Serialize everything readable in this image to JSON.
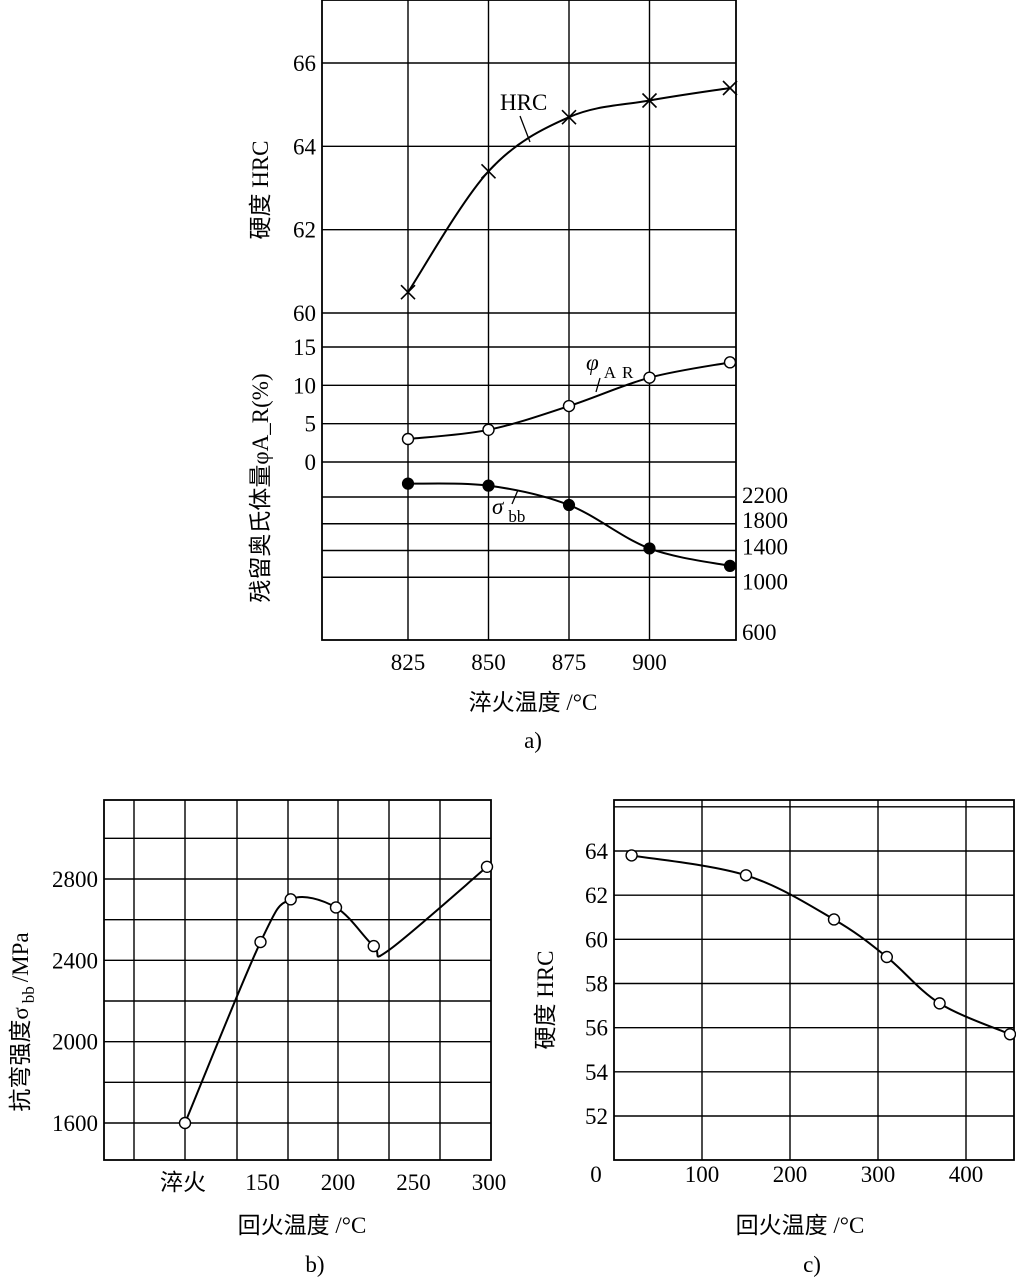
{
  "chart_data": [
    {
      "id": "a",
      "type": "line",
      "caption": "a)",
      "xlabel": "淬火温度 /°C",
      "x": [
        825,
        850,
        875,
        900,
        925
      ],
      "xticks": [
        "825",
        "850",
        "875",
        "900"
      ],
      "panels": {
        "hardness": {
          "ylabel": "硬度 HRC",
          "ylim": [
            60,
            67.5
          ],
          "yticks": [
            "60",
            "62",
            "64",
            "66"
          ],
          "series": [
            {
              "name": "HRC",
              "label": "HRC",
              "marker": "x",
              "values": [
                60.5,
                63.4,
                64.7,
                65.1,
                65.4
              ]
            }
          ]
        },
        "austenite": {
          "ylabel": "残留奥氏体量φA_R(%)",
          "ylim": [
            0,
            15
          ],
          "yticks": [
            "0",
            "5",
            "10",
            "15"
          ],
          "series": [
            {
              "name": "phi_AR",
              "label_main": "φ",
              "label_sub": "A",
              "label_sub2": "R",
              "marker": "open-circle",
              "values": [
                3,
                4.2,
                7.3,
                11,
                13
              ]
            }
          ]
        },
        "strength": {
          "ylim": [
            400,
            2600
          ],
          "yticks": [
            "600",
            "1000",
            "1400",
            "1800",
            "2200"
          ],
          "series": [
            {
              "name": "sigma_bb",
              "label_main": "σ",
              "label_sub": "bb",
              "marker": "filled-circle",
              "values": [
                2400,
                2370,
                2080,
                1430,
                1170
              ]
            }
          ]
        }
      }
    },
    {
      "id": "b",
      "type": "line",
      "caption": "b)",
      "xlabel": "回火温度 /°C",
      "xlim": [
        50,
        305
      ],
      "xticks": [
        {
          "value": 100,
          "label": "淬火"
        },
        {
          "value": 150,
          "label": "150"
        },
        {
          "value": 200,
          "label": "200"
        },
        {
          "value": 250,
          "label": "250"
        },
        {
          "value": 300,
          "label": "300"
        }
      ],
      "ylabel_main": "抗弯强度σ",
      "ylabel_sub": "bb",
      "ylabel_tail": "/MPa",
      "ylim": [
        1400,
        3200
      ],
      "yticks": [
        "1600",
        "2000",
        "2400",
        "2800"
      ],
      "series": [
        {
          "name": "sigma_bb",
          "marker": "open-circle",
          "x": [
            100,
            150,
            170,
            200,
            225,
            300
          ],
          "values": [
            1600,
            2490,
            2700,
            2660,
            2470,
            2860
          ]
        }
      ]
    },
    {
      "id": "c",
      "type": "line",
      "caption": "c)",
      "xlabel": "回火温度 /°C",
      "xlim": [
        0,
        450
      ],
      "xticks": [
        "0",
        "100",
        "200",
        "300",
        "400"
      ],
      "ylabel": "硬度 HRC",
      "ylim": [
        50,
        67
      ],
      "yticks": [
        "52",
        "54",
        "56",
        "58",
        "60",
        "62",
        "64"
      ],
      "series": [
        {
          "name": "HRC",
          "marker": "open-circle",
          "x": [
            20,
            150,
            250,
            310,
            370,
            450
          ],
          "values": [
            63.8,
            62.9,
            60.9,
            59.2,
            57.1,
            55.7
          ]
        }
      ]
    }
  ]
}
